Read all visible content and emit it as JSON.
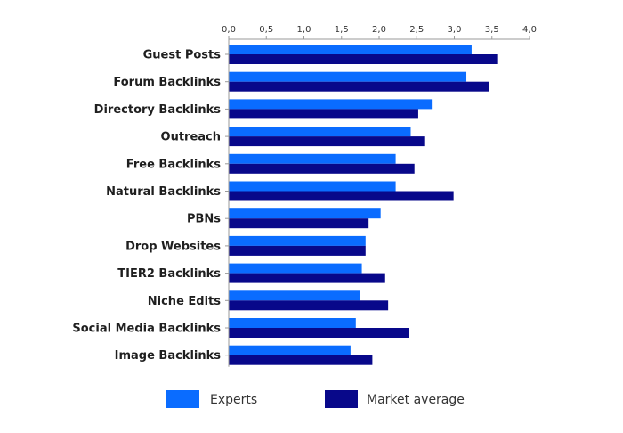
{
  "chart_data": {
    "type": "bar",
    "orientation": "horizontal",
    "xlim": [
      0,
      4.0
    ],
    "x_ticks": [
      "0,0",
      "0,5",
      "1,0",
      "1,5",
      "2,0",
      "2,5",
      "3,0",
      "3,5",
      "4,0"
    ],
    "x_tick_values": [
      0,
      0.5,
      1.0,
      1.5,
      2.0,
      2.5,
      3.0,
      3.5,
      4.0
    ],
    "x_axis_position": "top",
    "grid": false,
    "legend_position": "bottom",
    "categories": [
      "Guest Posts",
      "Forum Backlinks",
      "Directory Backlinks",
      "Outreach",
      "Free Backlinks",
      "Natural Backlinks",
      "PBNs",
      "Drop Websites",
      "TIER2 Backlinks",
      "Niche Edits",
      "Social Media Backlinks",
      "Image Backlinks"
    ],
    "series": [
      {
        "name": "Experts",
        "color": "#0a6cff",
        "values": [
          3.23,
          3.16,
          2.7,
          2.42,
          2.22,
          2.22,
          2.02,
          1.82,
          1.77,
          1.75,
          1.69,
          1.62
        ]
      },
      {
        "name": "Market average",
        "color": "#08088a",
        "values": [
          3.57,
          3.46,
          2.52,
          2.6,
          2.47,
          2.99,
          1.86,
          1.82,
          2.08,
          2.12,
          2.4,
          1.91
        ]
      }
    ]
  }
}
